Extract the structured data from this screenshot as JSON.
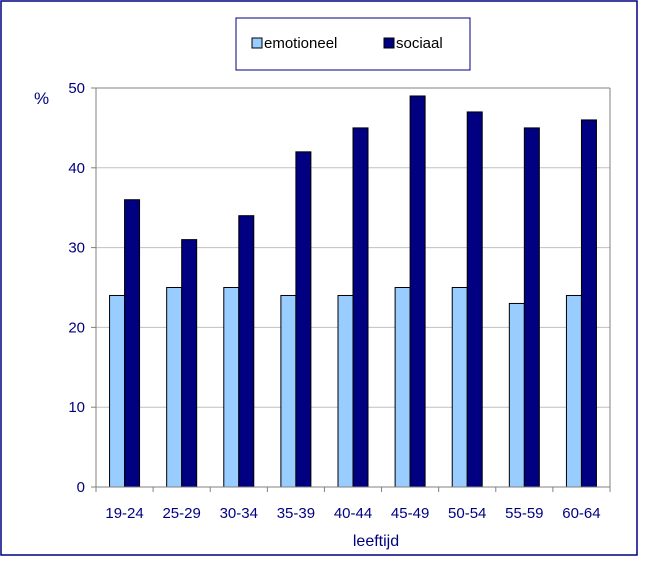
{
  "chart_data": {
    "type": "bar",
    "categories": [
      "19-24",
      "25-29",
      "30-34",
      "35-39",
      "40-44",
      "45-49",
      "50-54",
      "55-59",
      "60-64"
    ],
    "series": [
      {
        "name": "emotioneel",
        "values": [
          24,
          25,
          25,
          24,
          24,
          25,
          25,
          23,
          24
        ],
        "color": "#99ccff"
      },
      {
        "name": "sociaal",
        "values": [
          36,
          31,
          34,
          42,
          45,
          49,
          47,
          45,
          46
        ],
        "color": "#000080"
      }
    ],
    "title": "",
    "xlabel": "leeftijd",
    "ylabel": "%",
    "ylim": [
      0,
      50
    ],
    "yticks": [
      0,
      10,
      20,
      30,
      40,
      50
    ],
    "grid": true,
    "legend_position": "top-center",
    "colors": {
      "frame": "#000080",
      "text": "#000080",
      "grid": "#c0c0c0",
      "axis": "#808080",
      "bar_stroke": "#000000"
    }
  }
}
